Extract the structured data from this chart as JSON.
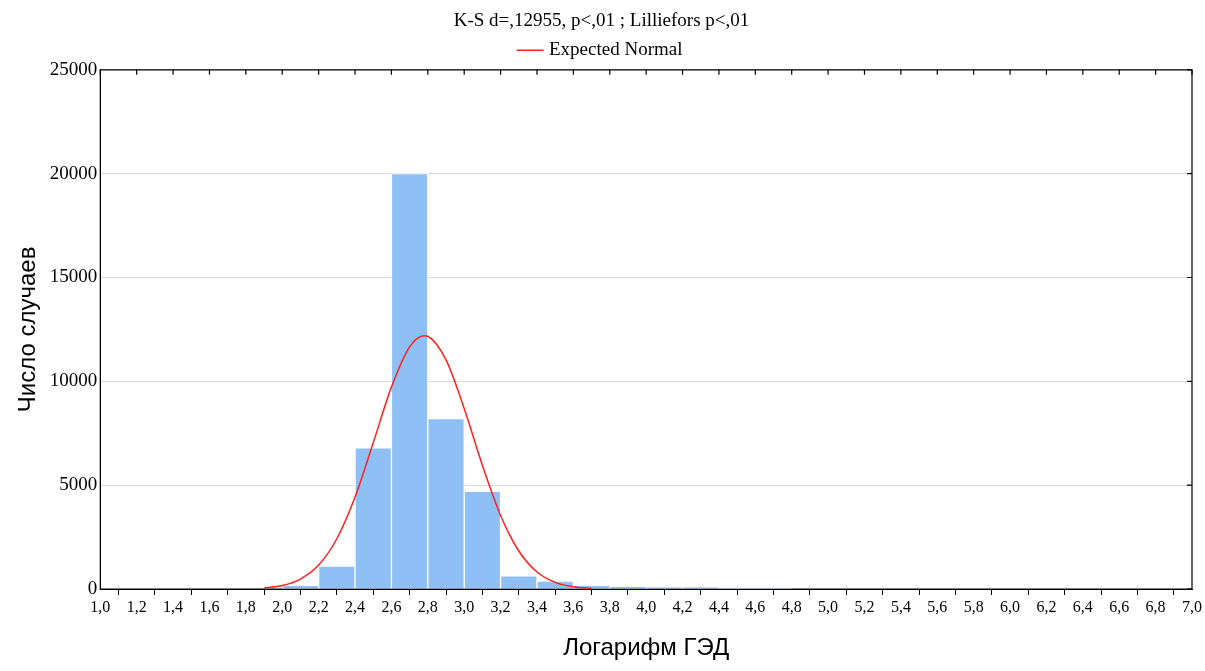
{
  "chart_data": {
    "type": "histogram",
    "title": "K-S d=,12955, p<,01 ; Lilliefors p<,01",
    "xlabel": "Логарифм ГЭД",
    "ylabel": "Число случаев",
    "bins": [
      2.0,
      2.2,
      2.4,
      2.6,
      2.8,
      3.0,
      3.2,
      3.4,
      3.6,
      3.8,
      4.0,
      4.2,
      4.4,
      4.6,
      4.8
    ],
    "values": [
      180,
      1100,
      6800,
      20000,
      8200,
      4700,
      640,
      380,
      180,
      130,
      100,
      100,
      50,
      50
    ],
    "color": "#8fc0f5",
    "series": [
      {
        "type": "line",
        "name": "Expected Normal",
        "color": "#ff2020",
        "marker": "none",
        "line_style": "solid",
        "x": [
          1.9,
          2.0,
          2.1,
          2.2,
          2.3,
          2.4,
          2.5,
          2.6,
          2.7,
          2.78,
          2.8,
          2.9,
          3.0,
          3.1,
          3.2,
          3.3,
          3.4,
          3.5,
          3.6,
          3.7
        ],
        "values": [
          50,
          170,
          480,
          1150,
          2420,
          4430,
          7040,
          9720,
          11660,
          12200,
          12170,
          11030,
          8690,
          5950,
          3540,
          1830,
          820,
          320,
          110,
          30
        ]
      }
    ],
    "xlim": [
      1.0,
      7.0
    ],
    "xticks": [
      {
        "value": 1.0,
        "label": "1,0"
      },
      {
        "value": 1.2,
        "label": "1,2"
      },
      {
        "value": 1.4,
        "label": "1,4"
      },
      {
        "value": 1.6,
        "label": "1,6"
      },
      {
        "value": 1.8,
        "label": "1,8"
      },
      {
        "value": 2.0,
        "label": "2,0"
      },
      {
        "value": 2.2,
        "label": "2,2"
      },
      {
        "value": 2.4,
        "label": "2,4"
      },
      {
        "value": 2.6,
        "label": "2,6"
      },
      {
        "value": 2.8,
        "label": "2,8"
      },
      {
        "value": 3.0,
        "label": "3,0"
      },
      {
        "value": 3.2,
        "label": "3,2"
      },
      {
        "value": 3.4,
        "label": "3,4"
      },
      {
        "value": 3.6,
        "label": "3,6"
      },
      {
        "value": 3.8,
        "label": "3,8"
      },
      {
        "value": 4.0,
        "label": "4,0"
      },
      {
        "value": 4.2,
        "label": "4,2"
      },
      {
        "value": 4.4,
        "label": "4,4"
      },
      {
        "value": 4.6,
        "label": "4,6"
      },
      {
        "value": 4.8,
        "label": "4,8"
      },
      {
        "value": 5.0,
        "label": "5,0"
      },
      {
        "value": 5.2,
        "label": "5,2"
      },
      {
        "value": 5.4,
        "label": "5,4"
      },
      {
        "value": 5.6,
        "label": "5,6"
      },
      {
        "value": 5.8,
        "label": "5,8"
      },
      {
        "value": 6.0,
        "label": "6,0"
      },
      {
        "value": 6.2,
        "label": "6,2"
      },
      {
        "value": 6.4,
        "label": "6,4"
      },
      {
        "value": 6.6,
        "label": "6,6"
      },
      {
        "value": 6.8,
        "label": "6,8"
      },
      {
        "value": 7.0,
        "label": "7,0"
      }
    ],
    "ylim": [
      0,
      25000
    ],
    "yticks": [
      0,
      5000,
      10000,
      15000,
      20000,
      25000
    ],
    "grid": "y",
    "legend": "top"
  }
}
